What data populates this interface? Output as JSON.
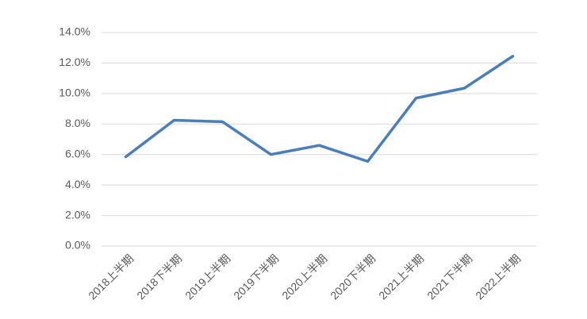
{
  "chart_data": {
    "type": "line",
    "categories": [
      "2018上半期",
      "2018下半期",
      "2019上半期",
      "2019下半期",
      "2020上半期",
      "2020下半期",
      "2021上半期",
      "2021下半期",
      "2022上半期"
    ],
    "values": [
      5.85,
      8.25,
      8.15,
      6.0,
      6.6,
      5.55,
      9.7,
      10.35,
      12.45
    ],
    "color": "#4a7ebb",
    "ylim": [
      0,
      14
    ],
    "yticks": [
      {
        "value": 0,
        "label": "0.0%"
      },
      {
        "value": 2,
        "label": "2.0%"
      },
      {
        "value": 4,
        "label": "4.0%"
      },
      {
        "value": 6,
        "label": "6.0%"
      },
      {
        "value": 8,
        "label": "8.0%"
      },
      {
        "value": 10,
        "label": "10.0%"
      },
      {
        "value": 12,
        "label": "12.0%"
      },
      {
        "value": 14,
        "label": "14.0%"
      }
    ],
    "grid": true
  }
}
